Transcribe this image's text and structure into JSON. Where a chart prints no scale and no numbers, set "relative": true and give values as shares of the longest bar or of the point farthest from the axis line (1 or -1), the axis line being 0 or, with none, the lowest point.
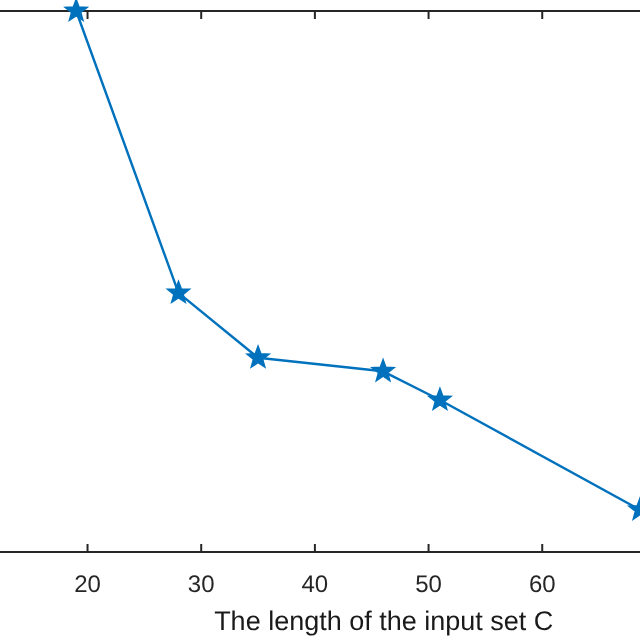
{
  "chart_data": {
    "type": "line",
    "xlabel": "The length of the input set C",
    "relative": true,
    "x": [
      19,
      28,
      35,
      46,
      51,
      68.6
    ],
    "xlim": [
      12.3,
      68.6
    ],
    "xticks": [
      20,
      30,
      40,
      50,
      60
    ],
    "series": [
      {
        "color": "#0072bd",
        "values": [
          1,
          0.479,
          0.359,
          0.334,
          0.281,
          0.078
        ]
      }
    ],
    "marker": "star",
    "line_style": "solid",
    "grid": false
  }
}
